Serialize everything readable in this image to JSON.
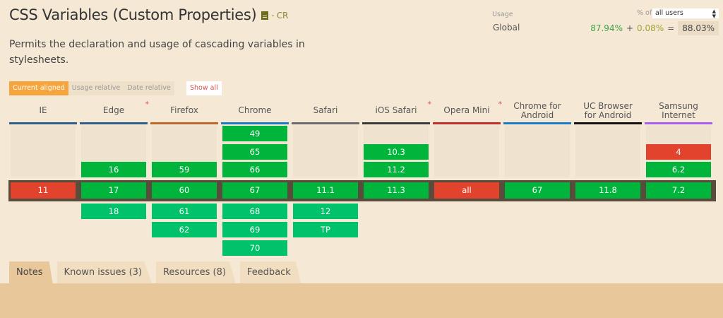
{
  "feature": {
    "title": "CSS Variables (Custom Properties)",
    "spec_status": "- CR",
    "description": "Permits the declaration and usage of cascading variables in stylesheets."
  },
  "modes": {
    "current_aligned": "Current aligned",
    "usage_relative": "Usage relative",
    "date_relative": "Date relative",
    "show_all": "Show all"
  },
  "usage": {
    "label": "Usage",
    "region": "Global",
    "pct_of": "% of",
    "users_select": "all users",
    "full": "87.94%",
    "plus": "+",
    "partial": "0.08%",
    "equals": "=",
    "total": "88.03%"
  },
  "browsers": [
    {
      "name": "IE",
      "color": "#2f5e8c",
      "star": false,
      "cells": [
        {
          "row": 3,
          "v": "11",
          "s": "n"
        }
      ]
    },
    {
      "name": "Edge",
      "color": "#2f5e8c",
      "star": true,
      "cells": [
        {
          "row": 2,
          "v": "16",
          "s": "y"
        },
        {
          "row": 3,
          "v": "17",
          "s": "y"
        },
        {
          "row": 4,
          "v": "18",
          "s": "f"
        }
      ]
    },
    {
      "name": "Firefox",
      "color": "#c0682a",
      "star": false,
      "cells": [
        {
          "row": 2,
          "v": "59",
          "s": "y"
        },
        {
          "row": 3,
          "v": "60",
          "s": "y"
        },
        {
          "row": 4,
          "v": "61",
          "s": "f"
        },
        {
          "row": 5,
          "v": "62",
          "s": "f"
        }
      ]
    },
    {
      "name": "Chrome",
      "color": "#1b7cc6",
      "star": false,
      "cells": [
        {
          "row": 0,
          "v": "49",
          "s": "y"
        },
        {
          "row": 1,
          "v": "65",
          "s": "y"
        },
        {
          "row": 2,
          "v": "66",
          "s": "y"
        },
        {
          "row": 3,
          "v": "67",
          "s": "y"
        },
        {
          "row": 4,
          "v": "68",
          "s": "f"
        },
        {
          "row": 5,
          "v": "69",
          "s": "f"
        },
        {
          "row": 6,
          "v": "70",
          "s": "f"
        }
      ]
    },
    {
      "name": "Safari",
      "color": "#6b6b6b",
      "star": false,
      "cells": [
        {
          "row": 3,
          "v": "11.1",
          "s": "y"
        },
        {
          "row": 4,
          "v": "12",
          "s": "f"
        },
        {
          "row": 5,
          "v": "TP",
          "s": "f"
        }
      ]
    },
    {
      "name": "iOS Safari",
      "color": "#3a3a3a",
      "star": true,
      "cells": [
        {
          "row": 1,
          "v": "10.3",
          "s": "y"
        },
        {
          "row": 2,
          "v": "11.2",
          "s": "y"
        },
        {
          "row": 3,
          "v": "11.3",
          "s": "y"
        }
      ]
    },
    {
      "name": "Opera Mini",
      "color": "#c0302a",
      "star": true,
      "cells": [
        {
          "row": 3,
          "v": "all",
          "s": "n"
        }
      ]
    },
    {
      "name": "Chrome for Android",
      "color": "#1b7cc6",
      "star": false,
      "cells": [
        {
          "row": 3,
          "v": "67",
          "s": "y"
        }
      ]
    },
    {
      "name": "UC Browser for Android",
      "color": "#111111",
      "star": false,
      "cells": [
        {
          "row": 3,
          "v": "11.8",
          "s": "y"
        }
      ]
    },
    {
      "name": "Samsung Internet",
      "color": "#a55ef0",
      "star": false,
      "cells": [
        {
          "row": 1,
          "v": "4",
          "s": "n"
        },
        {
          "row": 2,
          "v": "6.2",
          "s": "y"
        },
        {
          "row": 3,
          "v": "7.2",
          "s": "y"
        }
      ]
    }
  ],
  "tabs": [
    {
      "label": "Notes",
      "active": true
    },
    {
      "label": "Known issues (3)",
      "active": false
    },
    {
      "label": "Resources (8)",
      "active": false
    },
    {
      "label": "Feedback",
      "active": false
    }
  ],
  "colors": {
    "supported": "#00b43c",
    "future_supported": "#00c26a",
    "not_supported": "#e2432c",
    "accent": "#f5a53b",
    "background": "#f5e8d5"
  }
}
